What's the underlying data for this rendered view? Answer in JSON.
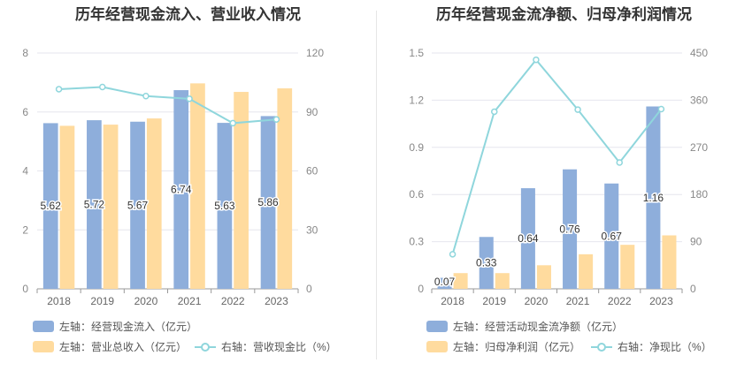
{
  "chart_data": [
    {
      "type": "bar",
      "title": "历年经营现金流入、营业收入情况",
      "categories": [
        "2018",
        "2019",
        "2020",
        "2021",
        "2022",
        "2023"
      ],
      "left_axis": {
        "ticks": [
          "0",
          "2",
          "4",
          "6",
          "8"
        ],
        "ylim": [
          0,
          8
        ]
      },
      "right_axis": {
        "ticks": [
          "0",
          "30",
          "60",
          "90",
          "120"
        ],
        "ylim": [
          0,
          120
        ]
      },
      "series": [
        {
          "name": "左轴：经营现金流入（亿元）",
          "axis": "left",
          "kind": "bar",
          "color": "#8eaedb",
          "values": [
            5.62,
            5.72,
            5.67,
            6.74,
            5.63,
            5.86
          ],
          "labels": [
            "5.62",
            "5.72",
            "5.67",
            "6.74",
            "5.63",
            "5.86"
          ]
        },
        {
          "name": "左轴：营业总收入（亿元）",
          "axis": "left",
          "kind": "bar",
          "color": "#ffdb9e",
          "values": [
            5.53,
            5.57,
            5.78,
            6.97,
            6.68,
            6.8
          ]
        },
        {
          "name": "右轴：营收现金比（%）",
          "axis": "right",
          "kind": "line",
          "color": "#8fd6dc",
          "values": [
            101.6,
            102.7,
            98.1,
            96.7,
            84.3,
            86.2
          ]
        }
      ]
    },
    {
      "type": "bar",
      "title": "历年经营现金流净额、归母净利润情况",
      "categories": [
        "2018",
        "2019",
        "2020",
        "2021",
        "2022",
        "2023"
      ],
      "left_axis": {
        "ticks": [
          "0",
          "0.3",
          "0.6",
          "0.9",
          "1.2",
          "1.5"
        ],
        "ylim": [
          0,
          1.5
        ]
      },
      "right_axis": {
        "ticks": [
          "0",
          "90",
          "180",
          "270",
          "360",
          "450"
        ],
        "ylim": [
          0,
          450
        ]
      },
      "series": [
        {
          "name": "左轴：经营活动现金流净额（亿元）",
          "axis": "left",
          "kind": "bar",
          "color": "#8eaedb",
          "values": [
            0.07,
            0.33,
            0.64,
            0.76,
            0.67,
            1.16
          ],
          "labels": [
            "0.07",
            "0.33",
            "0.64",
            "0.76",
            "0.67",
            "1.16"
          ]
        },
        {
          "name": "左轴：归母净利润（亿元）",
          "axis": "left",
          "kind": "bar",
          "color": "#ffdb9e",
          "values": [
            0.1,
            0.1,
            0.15,
            0.22,
            0.28,
            0.34
          ]
        },
        {
          "name": "右轴：净现比（%）",
          "axis": "right",
          "kind": "line",
          "color": "#8fd6dc",
          "values": [
            66,
            338,
            437,
            342,
            241,
            343
          ]
        }
      ]
    }
  ]
}
